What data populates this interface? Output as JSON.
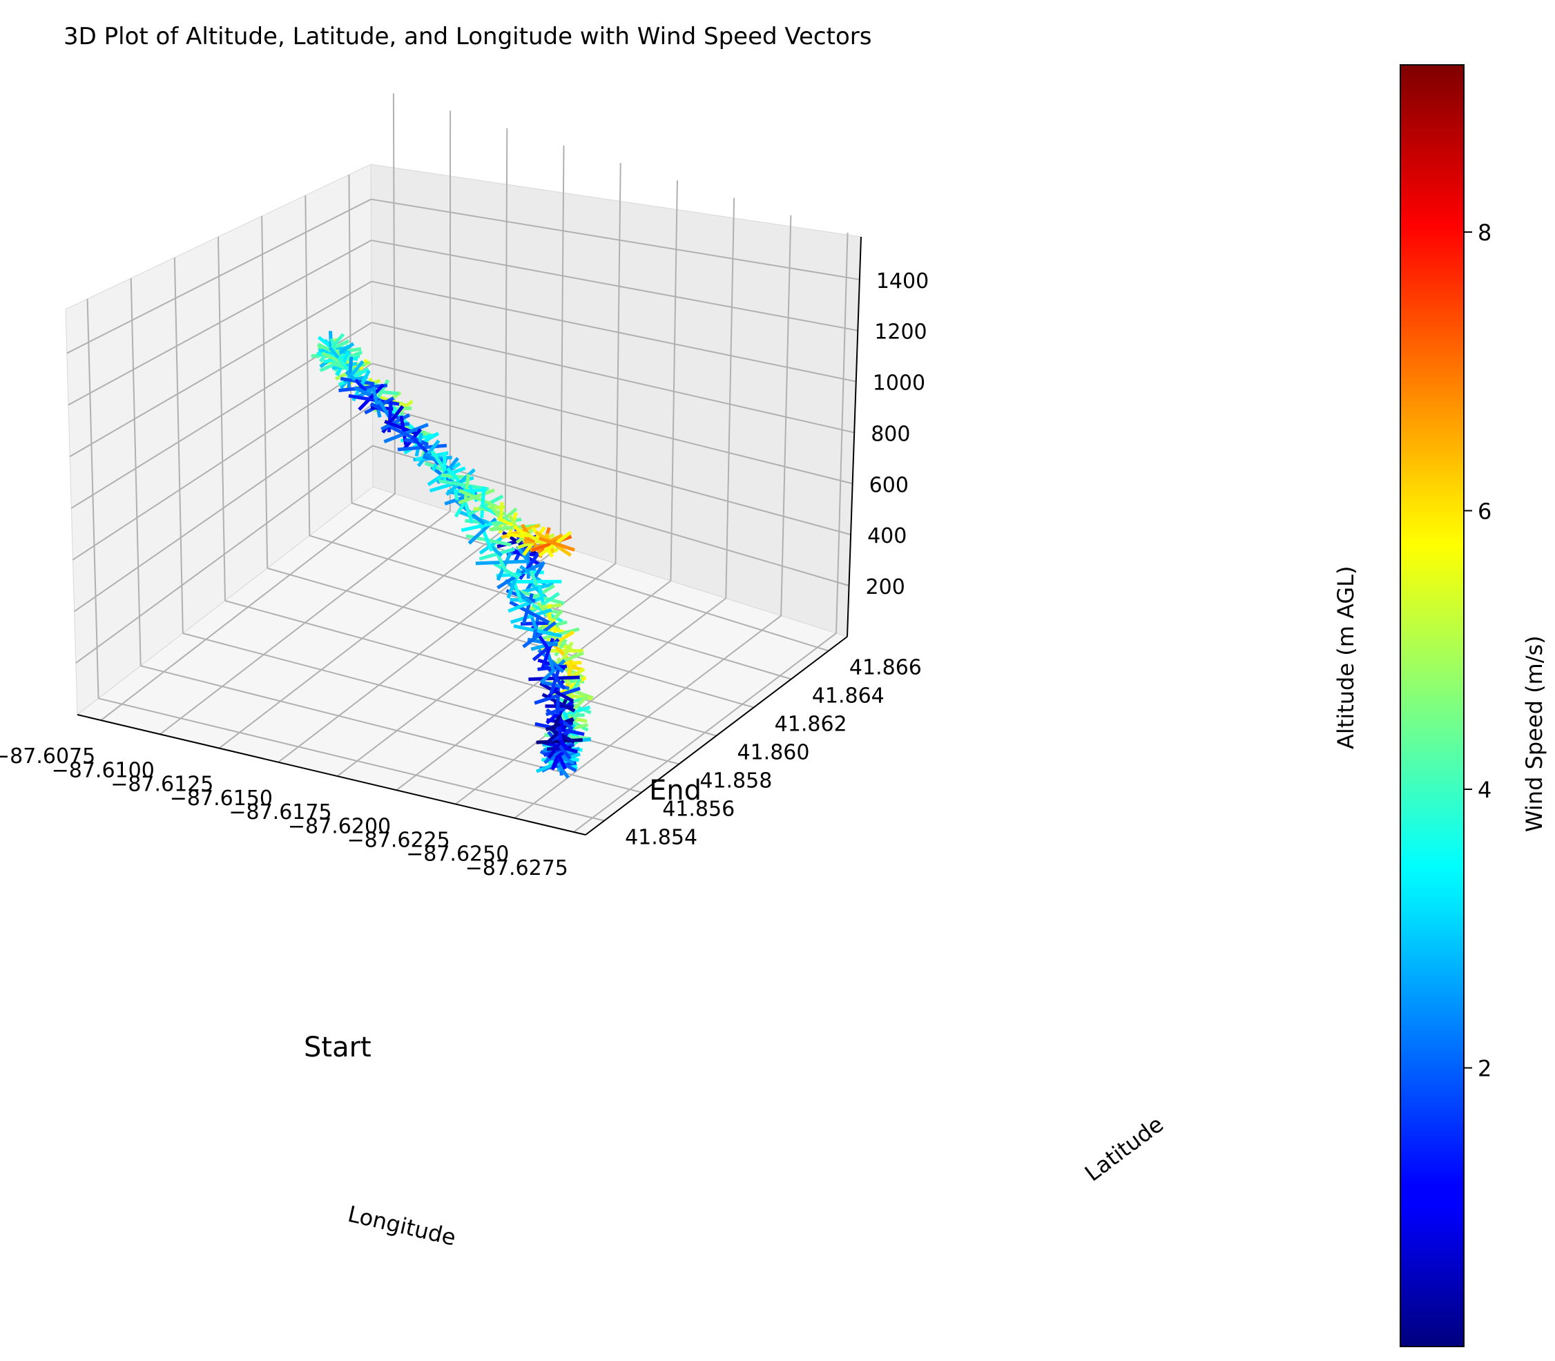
{
  "chart_data": {
    "type": "3d-line-vectors",
    "title": "3D Plot of Altitude, Latitude, and Longitude with Wind Speed Vectors",
    "xlabel": "Longitude",
    "ylabel": "Latitude",
    "zlabel": "Altitude (m AGL)",
    "colorbar_label": "Wind Speed (m/s)",
    "colormap": "jet",
    "colorbar_range": [
      0,
      9.2
    ],
    "colorbar_ticks": [
      "2",
      "4",
      "6",
      "8"
    ],
    "x_ticks": [
      "−87.6075",
      "−87.6100",
      "−87.6125",
      "−87.6150",
      "−87.6175",
      "−87.6200",
      "−87.6225",
      "−87.6250",
      "−87.6275"
    ],
    "y_ticks": [
      "41.854",
      "41.856",
      "41.858",
      "41.860",
      "41.862",
      "41.864",
      "41.866"
    ],
    "z_ticks": [
      "200",
      "400",
      "600",
      "800",
      "1000",
      "1200",
      "1400"
    ],
    "annotations": [
      "Start",
      "End"
    ],
    "grid": true,
    "trajectory": {
      "points": [
        {
          "lon": -87.6135,
          "lat": 41.866,
          "alt": 30,
          "wind": 0.5
        },
        {
          "lon": -87.616,
          "lat": 41.864,
          "alt": 40,
          "wind": 3.0
        },
        {
          "lon": -87.6185,
          "lat": 41.862,
          "alt": 50,
          "wind": 5.0
        },
        {
          "lon": -87.621,
          "lat": 41.86,
          "alt": 60,
          "wind": 5.5
        },
        {
          "lon": -87.623,
          "lat": 41.858,
          "alt": 70,
          "wind": 4.5
        },
        {
          "lon": -87.6245,
          "lat": 41.856,
          "alt": 85,
          "wind": 3.5
        },
        {
          "lon": -87.6255,
          "lat": 41.8545,
          "alt": 120,
          "wind": 2.5
        },
        {
          "lon": -87.626,
          "lat": 41.854,
          "alt": 250,
          "wind": 0.8
        },
        {
          "lon": -87.6262,
          "lat": 41.8538,
          "alt": 400,
          "wind": 1.0
        },
        {
          "lon": -87.626,
          "lat": 41.8536,
          "alt": 600,
          "wind": 1.8
        },
        {
          "lon": -87.6252,
          "lat": 41.8534,
          "alt": 800,
          "wind": 2.5
        },
        {
          "lon": -87.6238,
          "lat": 41.8534,
          "alt": 1000,
          "wind": 3.5
        },
        {
          "lon": -87.6218,
          "lat": 41.8536,
          "alt": 1200,
          "wind": 3.0
        },
        {
          "lon": -87.6192,
          "lat": 41.854,
          "alt": 1400,
          "wind": 4.5
        },
        {
          "lon": -87.6165,
          "lat": 41.8545,
          "alt": 1500,
          "wind": 5.0
        },
        {
          "lon": -87.615,
          "lat": 41.8555,
          "alt": 1470,
          "wind": 3.5
        },
        {
          "lon": -87.6146,
          "lat": 41.8565,
          "alt": 1330,
          "wind": 3.8
        },
        {
          "lon": -87.6148,
          "lat": 41.8575,
          "alt": 1150,
          "wind": 1.8
        },
        {
          "lon": -87.6155,
          "lat": 41.8585,
          "alt": 950,
          "wind": 1.5
        },
        {
          "lon": -87.6165,
          "lat": 41.8595,
          "alt": 750,
          "wind": 3.5
        },
        {
          "lon": -87.6175,
          "lat": 41.8605,
          "alt": 550,
          "wind": 4.5
        },
        {
          "lon": -87.6185,
          "lat": 41.8612,
          "alt": 420,
          "wind": 6.0
        },
        {
          "lon": -87.619,
          "lat": 41.8618,
          "alt": 380,
          "wind": 6.5
        }
      ]
    }
  }
}
